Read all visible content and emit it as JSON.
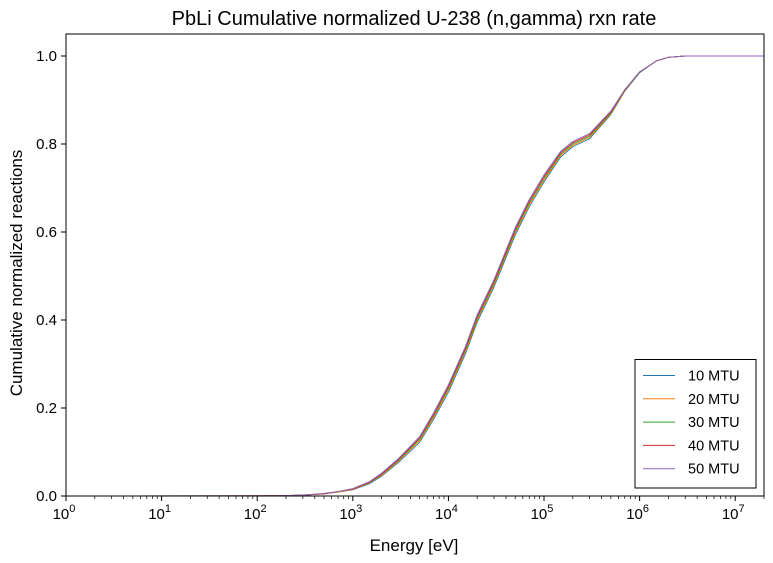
{
  "chart_data": {
    "type": "line",
    "title": "PbLi Cumulative normalized U-238 (n,gamma) rxn rate",
    "xlabel": "Energy [eV]",
    "ylabel": "Cumulative normalized reactions",
    "xscale": "log",
    "xlim": [
      1,
      20000000
    ],
    "ylim": [
      0,
      1.05
    ],
    "x_ticks": [
      {
        "base": "10",
        "exp": "0",
        "value": 1
      },
      {
        "base": "10",
        "exp": "1",
        "value": 10
      },
      {
        "base": "10",
        "exp": "2",
        "value": 100
      },
      {
        "base": "10",
        "exp": "3",
        "value": 1000
      },
      {
        "base": "10",
        "exp": "4",
        "value": 10000
      },
      {
        "base": "10",
        "exp": "5",
        "value": 100000
      },
      {
        "base": "10",
        "exp": "6",
        "value": 1000000
      },
      {
        "base": "10",
        "exp": "7",
        "value": 10000000
      }
    ],
    "y_ticks": [
      "0.0",
      "0.2",
      "0.4",
      "0.6",
      "0.8",
      "1.0"
    ],
    "grid": false,
    "legend_position": "bottom-right",
    "x": [
      1,
      100,
      200,
      300,
      500,
      700,
      1000,
      1500,
      2000,
      3000,
      5000,
      7000,
      10000,
      15000,
      20000,
      30000,
      50000,
      70000,
      100000,
      150000,
      200000,
      300000,
      500000,
      700000,
      1000000,
      1500000,
      2000000,
      3000000,
      5000000,
      10000000,
      20000000
    ],
    "series": [
      {
        "name": "10 MTU",
        "color": "#1f77b4",
        "values": [
          0,
          0.0005,
          0.001,
          0.002,
          0.005,
          0.009,
          0.014,
          0.028,
          0.045,
          0.076,
          0.122,
          0.174,
          0.236,
          0.322,
          0.395,
          0.475,
          0.593,
          0.657,
          0.714,
          0.771,
          0.794,
          0.812,
          0.867,
          0.92,
          0.962,
          0.989,
          0.997,
          1.0,
          1.0,
          1.0,
          1.0
        ]
      },
      {
        "name": "20 MTU",
        "color": "#ff7f0e",
        "values": [
          0,
          0.0005,
          0.001,
          0.002,
          0.005,
          0.009,
          0.015,
          0.03,
          0.047,
          0.079,
          0.126,
          0.178,
          0.241,
          0.327,
          0.4,
          0.48,
          0.598,
          0.662,
          0.718,
          0.775,
          0.797,
          0.815,
          0.869,
          0.921,
          0.963,
          0.989,
          0.997,
          1.0,
          1.0,
          1.0,
          1.0
        ]
      },
      {
        "name": "30 MTU",
        "color": "#2ca02c",
        "values": [
          0,
          0.0005,
          0.001,
          0.002,
          0.005,
          0.01,
          0.016,
          0.031,
          0.049,
          0.081,
          0.129,
          0.182,
          0.245,
          0.331,
          0.404,
          0.484,
          0.602,
          0.666,
          0.722,
          0.778,
          0.8,
          0.818,
          0.871,
          0.922,
          0.963,
          0.989,
          0.997,
          1.0,
          1.0,
          1.0,
          1.0
        ]
      },
      {
        "name": "40 MTU",
        "color": "#d62728",
        "values": [
          0,
          0.0005,
          0.001,
          0.002,
          0.005,
          0.01,
          0.016,
          0.032,
          0.05,
          0.083,
          0.132,
          0.185,
          0.249,
          0.335,
          0.408,
          0.488,
          0.606,
          0.67,
          0.726,
          0.781,
          0.803,
          0.821,
          0.873,
          0.923,
          0.964,
          0.989,
          0.997,
          1.0,
          1.0,
          1.0,
          1.0
        ]
      },
      {
        "name": "50 MTU",
        "color": "#9467bd",
        "values": [
          0,
          0.0005,
          0.001,
          0.002,
          0.006,
          0.01,
          0.017,
          0.033,
          0.052,
          0.085,
          0.135,
          0.189,
          0.253,
          0.339,
          0.412,
          0.492,
          0.61,
          0.674,
          0.73,
          0.784,
          0.806,
          0.824,
          0.875,
          0.924,
          0.964,
          0.989,
          0.997,
          1.0,
          1.0,
          1.0,
          1.0
        ]
      }
    ]
  }
}
